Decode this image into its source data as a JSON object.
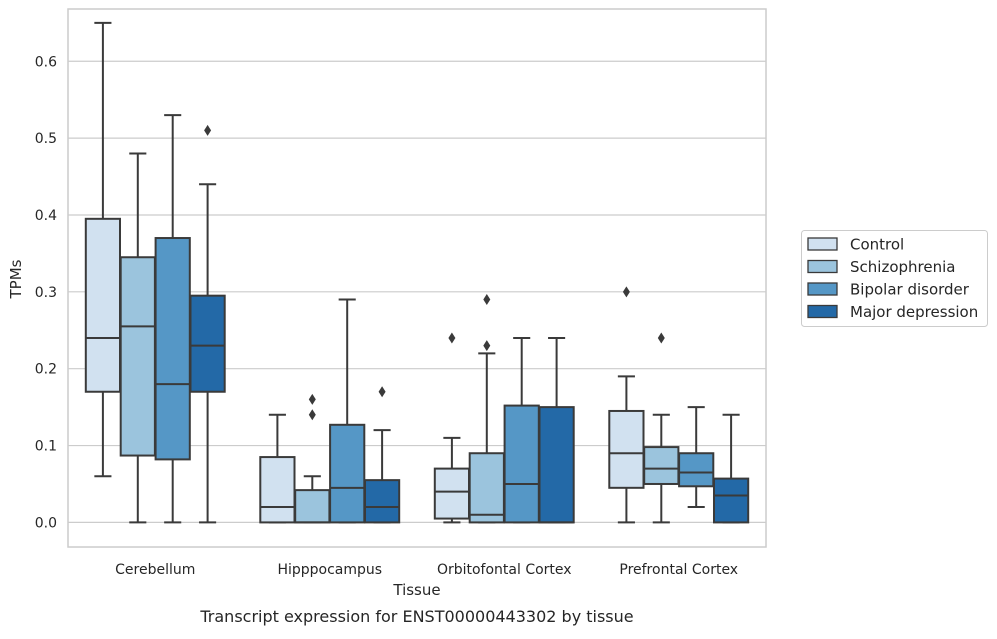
{
  "chart_data": {
    "type": "box",
    "caption": "Transcript expression for ENST00000443302 by tissue",
    "xlabel": "Tissue",
    "ylabel": "TPMs",
    "ylim": [
      -0.032,
      0.668
    ],
    "yticks": [
      {
        "value": 0.0,
        "label": "0.0"
      },
      {
        "value": 0.1,
        "label": "0.1"
      },
      {
        "value": 0.2,
        "label": "0.2"
      },
      {
        "value": 0.3,
        "label": "0.3"
      },
      {
        "value": 0.4,
        "label": "0.4"
      },
      {
        "value": 0.5,
        "label": "0.5"
      },
      {
        "value": 0.6,
        "label": "0.6"
      }
    ],
    "grid": "horizontal",
    "legend_position": "right",
    "categories": [
      "Cerebellum",
      "Hipppocampus",
      "Orbitofontal Cortex",
      "Prefrontal Cortex"
    ],
    "series": [
      {
        "name": "Control",
        "color": "#d1e1f0",
        "boxes": [
          {
            "whislo": 0.06,
            "q1": 0.17,
            "med": 0.24,
            "q3": 0.395,
            "whishi": 0.65,
            "fliers": []
          },
          {
            "whislo": 0.0,
            "q1": 0.0,
            "med": 0.02,
            "q3": 0.085,
            "whishi": 0.14,
            "fliers": []
          },
          {
            "whislo": 0.0,
            "q1": 0.005,
            "med": 0.04,
            "q3": 0.07,
            "whishi": 0.11,
            "fliers": [
              0.24
            ]
          },
          {
            "whislo": 0.0,
            "q1": 0.045,
            "med": 0.09,
            "q3": 0.145,
            "whishi": 0.19,
            "fliers": [
              0.3
            ]
          }
        ]
      },
      {
        "name": "Schizophrenia",
        "color": "#9bc4dd",
        "boxes": [
          {
            "whislo": 0.0,
            "q1": 0.087,
            "med": 0.255,
            "q3": 0.345,
            "whishi": 0.48,
            "fliers": []
          },
          {
            "whislo": 0.0,
            "q1": 0.0,
            "med": 0.0,
            "q3": 0.042,
            "whishi": 0.06,
            "fliers": [
              0.14,
              0.16
            ]
          },
          {
            "whislo": 0.0,
            "q1": 0.0,
            "med": 0.01,
            "q3": 0.09,
            "whishi": 0.22,
            "fliers": [
              0.23,
              0.29
            ]
          },
          {
            "whislo": 0.0,
            "q1": 0.05,
            "med": 0.07,
            "q3": 0.098,
            "whishi": 0.14,
            "fliers": [
              0.24
            ]
          }
        ]
      },
      {
        "name": "Bipolar disorder",
        "color": "#5597c6",
        "boxes": [
          {
            "whislo": 0.0,
            "q1": 0.082,
            "med": 0.18,
            "q3": 0.37,
            "whishi": 0.53,
            "fliers": []
          },
          {
            "whislo": 0.0,
            "q1": 0.0,
            "med": 0.045,
            "q3": 0.127,
            "whishi": 0.29,
            "fliers": []
          },
          {
            "whislo": 0.0,
            "q1": 0.0,
            "med": 0.05,
            "q3": 0.152,
            "whishi": 0.24,
            "fliers": []
          },
          {
            "whislo": 0.02,
            "q1": 0.047,
            "med": 0.065,
            "q3": 0.09,
            "whishi": 0.15,
            "fliers": []
          }
        ]
      },
      {
        "name": "Major depression",
        "color": "#2369a7",
        "boxes": [
          {
            "whislo": 0.0,
            "q1": 0.17,
            "med": 0.23,
            "q3": 0.295,
            "whishi": 0.44,
            "fliers": [
              0.51
            ]
          },
          {
            "whislo": 0.0,
            "q1": 0.0,
            "med": 0.02,
            "q3": 0.055,
            "whishi": 0.12,
            "fliers": [
              0.17
            ]
          },
          {
            "whislo": 0.0,
            "q1": 0.0,
            "med": 0.0,
            "q3": 0.15,
            "whishi": 0.24,
            "fliers": []
          },
          {
            "whislo": 0.0,
            "q1": 0.0,
            "med": 0.035,
            "q3": 0.057,
            "whishi": 0.14,
            "fliers": []
          }
        ]
      }
    ],
    "colors": {
      "grid": "#cccccc",
      "frame": "#cccccc",
      "stroke": "#3a3a3a",
      "text": "#262626"
    }
  }
}
